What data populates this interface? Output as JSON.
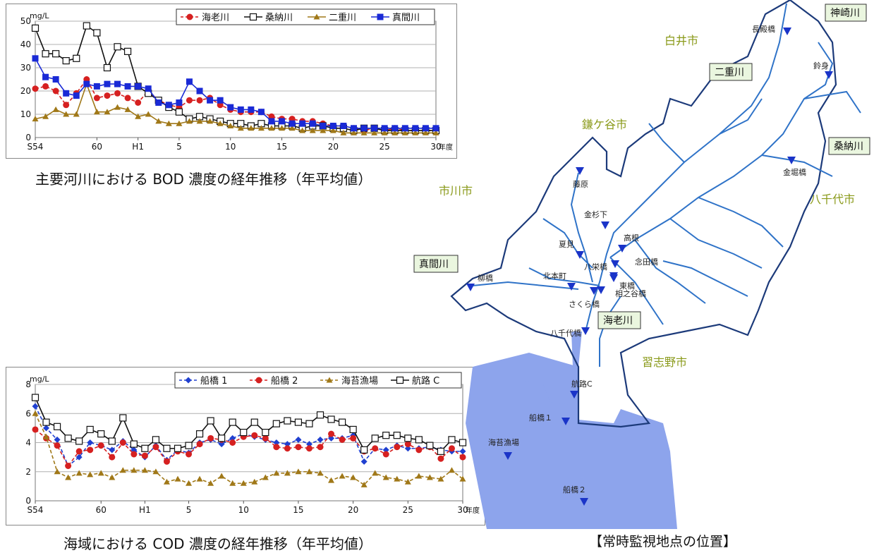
{
  "bod": {
    "caption": "主要河川における BOD 濃度の経年推移（年平均値）",
    "chart_data": {
      "type": "line",
      "ylabel": "mg/L",
      "xunit": "年度",
      "ylim": [
        0,
        50
      ],
      "yticks": [
        0,
        10,
        20,
        30,
        40,
        50
      ],
      "x": [
        "S54",
        "55",
        "56",
        "57",
        "58",
        "59",
        "60",
        "61",
        "62",
        "63",
        "H1",
        "2",
        "3",
        "4",
        "5",
        "6",
        "7",
        "8",
        "9",
        "10",
        "11",
        "12",
        "13",
        "14",
        "15",
        "16",
        "17",
        "18",
        "19",
        "20",
        "21",
        "22",
        "23",
        "24",
        "25",
        "26",
        "27",
        "28",
        "29",
        "30"
      ],
      "xticklabels": [
        "S54",
        "60",
        "H1",
        "5",
        "10",
        "15",
        "20",
        "25",
        "30"
      ],
      "legend_position": "top-right",
      "grid": true,
      "series": [
        {
          "name": "海老川",
          "color": "#d62020",
          "marker": "circle",
          "dash": true,
          "values": [
            21,
            22,
            20,
            14,
            19,
            25,
            17,
            18,
            19,
            17,
            15,
            20,
            16,
            14,
            13,
            16,
            16,
            17,
            14,
            12,
            11,
            11,
            11,
            9,
            8,
            8,
            7,
            7,
            6,
            5,
            5,
            4,
            3,
            4,
            3,
            4,
            3,
            3,
            3,
            3
          ]
        },
        {
          "name": "桑納川",
          "color": "#111111",
          "marker": "square-open",
          "dash": false,
          "values": [
            47,
            36,
            36,
            33,
            34,
            48,
            45,
            30,
            39,
            37,
            22,
            19,
            16,
            13,
            11,
            8,
            9,
            8,
            7,
            6,
            6,
            5,
            6,
            5,
            5,
            5,
            4,
            5,
            5,
            4,
            4,
            3,
            4,
            4,
            3,
            3,
            3,
            3,
            3,
            3
          ]
        },
        {
          "name": "二重川",
          "color": "#a07818",
          "marker": "triangle",
          "dash": false,
          "values": [
            8,
            9,
            12,
            10,
            10,
            23,
            11,
            11,
            13,
            12,
            9,
            10,
            7,
            6,
            6,
            7,
            7,
            7,
            6,
            5,
            4,
            4,
            4,
            4,
            4,
            4,
            3,
            3,
            3,
            3,
            2,
            2,
            2,
            2,
            2,
            2,
            2,
            2,
            2,
            2
          ]
        },
        {
          "name": "真間川",
          "color": "#1a2ad6",
          "marker": "square",
          "dash": false,
          "values": [
            34,
            26,
            25,
            19,
            18,
            23,
            22,
            23,
            23,
            22,
            22,
            21,
            15,
            14,
            15,
            24,
            20,
            16,
            16,
            13,
            12,
            12,
            11,
            7,
            7,
            6,
            6,
            6,
            5,
            5,
            5,
            4,
            4,
            4,
            4,
            4,
            4,
            4,
            4,
            4
          ]
        }
      ]
    }
  },
  "cod": {
    "caption": "海域における COD 濃度の経年推移（年平均値）",
    "chart_data": {
      "type": "line",
      "ylabel": "mg/L",
      "xunit": "年度",
      "ylim": [
        0,
        8
      ],
      "yticks": [
        0,
        2,
        4,
        6,
        8
      ],
      "x": [
        "S54",
        "55",
        "56",
        "57",
        "58",
        "59",
        "60",
        "61",
        "62",
        "63",
        "H1",
        "2",
        "3",
        "4",
        "5",
        "6",
        "7",
        "8",
        "9",
        "10",
        "11",
        "12",
        "13",
        "14",
        "15",
        "16",
        "17",
        "18",
        "19",
        "20",
        "21",
        "22",
        "23",
        "24",
        "25",
        "26",
        "27",
        "28",
        "29",
        "30"
      ],
      "xticklabels": [
        "S54",
        "60",
        "H1",
        "5",
        "10",
        "15",
        "20",
        "25",
        "30"
      ],
      "legend_position": "top-right",
      "grid": true,
      "series": [
        {
          "name": "船橋 1",
          "color": "#2040d0",
          "marker": "diamond",
          "dash": true,
          "values": [
            6.5,
            5.0,
            4.2,
            2.4,
            3.0,
            4.0,
            3.8,
            3.5,
            4.1,
            3.5,
            3.0,
            3.8,
            2.8,
            3.5,
            3.3,
            4.0,
            4.2,
            3.9,
            4.3,
            4.6,
            4.4,
            4.2,
            4.0,
            3.9,
            4.2,
            3.9,
            4.2,
            4.3,
            4.3,
            4.5,
            2.7,
            3.6,
            3.5,
            3.8,
            3.6,
            3.6,
            3.7,
            3.5,
            3.4,
            3.4
          ]
        },
        {
          "name": "船橋 2",
          "color": "#d62020",
          "marker": "circle",
          "dash": true,
          "values": [
            4.9,
            4.3,
            3.8,
            2.4,
            3.4,
            3.5,
            3.8,
            3.0,
            4.0,
            3.2,
            3.1,
            3.7,
            2.7,
            3.4,
            3.2,
            3.9,
            4.3,
            4.2,
            4.0,
            4.4,
            4.5,
            4.3,
            3.7,
            3.6,
            3.7,
            3.6,
            3.7,
            4.6,
            4.2,
            4.3,
            3.4,
            3.6,
            3.2,
            3.7,
            3.9,
            3.5,
            3.7,
            2.9,
            3.6,
            3.0
          ]
        },
        {
          "name": "海苔漁場",
          "color": "#a07818",
          "marker": "triangle",
          "dash": true,
          "values": [
            6.0,
            4.4,
            2.0,
            1.6,
            1.9,
            1.8,
            1.9,
            1.6,
            2.1,
            2.1,
            2.1,
            2.0,
            1.3,
            1.5,
            1.2,
            1.5,
            1.2,
            1.7,
            1.2,
            1.2,
            1.3,
            1.6,
            1.9,
            1.9,
            2.0,
            2.0,
            1.9,
            1.4,
            1.7,
            1.6,
            1.1,
            1.9,
            1.6,
            1.5,
            1.3,
            1.7,
            1.6,
            1.5,
            2.1,
            1.5
          ]
        },
        {
          "name": "航路 C",
          "color": "#111111",
          "marker": "square-open",
          "dash": false,
          "values": [
            7.1,
            5.4,
            5.1,
            4.3,
            4.1,
            4.9,
            4.6,
            4.1,
            5.7,
            3.9,
            3.6,
            4.2,
            3.6,
            3.6,
            3.8,
            4.6,
            5.5,
            4.3,
            5.4,
            4.7,
            5.4,
            4.7,
            5.3,
            5.5,
            5.4,
            5.3,
            5.9,
            5.6,
            5.4,
            4.9,
            3.5,
            4.3,
            4.5,
            4.5,
            4.3,
            4.2,
            3.8,
            3.4,
            4.2,
            4.0
          ]
        }
      ]
    }
  },
  "map": {
    "caption": "【常時監視地点の位置】",
    "cities": [
      "白井市",
      "鎌ケ谷市",
      "市川市",
      "八千代市",
      "習志野市"
    ],
    "rivers": [
      "神崎川",
      "二重川",
      "桑納川",
      "真間川",
      "海老川"
    ],
    "points": [
      "長殿橋",
      "鈴身",
      "金堀橋",
      "藤原",
      "金杉下",
      "高根",
      "夏見",
      "念田橋",
      "八栄橋",
      "北本町",
      "東橋",
      "相之谷橋",
      "さくら橋",
      "柳橋",
      "八千代橋",
      "航路C",
      "船橋１",
      "海苔漁場",
      "船橋２"
    ],
    "colors": {
      "river": "#2f73c8",
      "boundary": "#1c3a7a",
      "sea": "#8da4ec",
      "marker": "#1a34c8"
    }
  }
}
